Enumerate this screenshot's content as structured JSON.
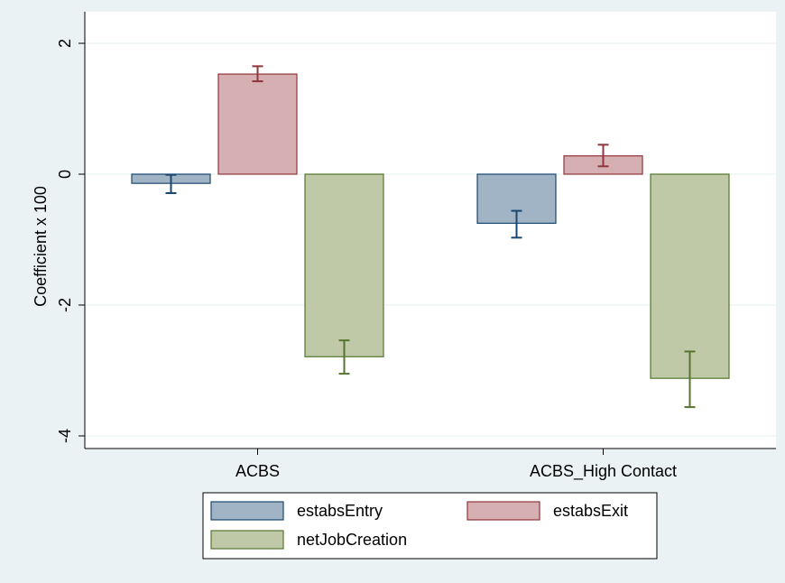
{
  "chart_data": {
    "type": "bar",
    "title": "",
    "xlabel": "",
    "ylabel": "Coefficient x 100",
    "ylim": [
      -4.2,
      2.2
    ],
    "yticks": [
      2,
      0,
      -2,
      -4
    ],
    "yticklabels": [
      "2",
      "0",
      "-2",
      "-4"
    ],
    "grid": true,
    "legend_position": "bottom",
    "categories": [
      "ACBS",
      "ACBS_High Contact"
    ],
    "series": [
      {
        "name": "estabsEntry",
        "color": "#a1b4c5",
        "stroke": "#1a476f",
        "values": [
          -0.14,
          -0.75
        ],
        "ci_low": [
          -0.29,
          -0.97
        ],
        "ci_high": [
          -0.01,
          -0.56
        ]
      },
      {
        "name": "estabsExit",
        "color": "#d6afb3",
        "stroke": "#90353b",
        "values": [
          1.53,
          0.28
        ],
        "ci_low": [
          1.42,
          0.12
        ],
        "ci_high": [
          1.65,
          0.45
        ]
      },
      {
        "name": "netJobCreation",
        "color": "#bfc9a7",
        "stroke": "#55752f",
        "values": [
          -2.79,
          -3.12
        ],
        "ci_low": [
          -3.05,
          -3.56
        ],
        "ci_high": [
          -2.54,
          -2.71
        ]
      }
    ]
  }
}
